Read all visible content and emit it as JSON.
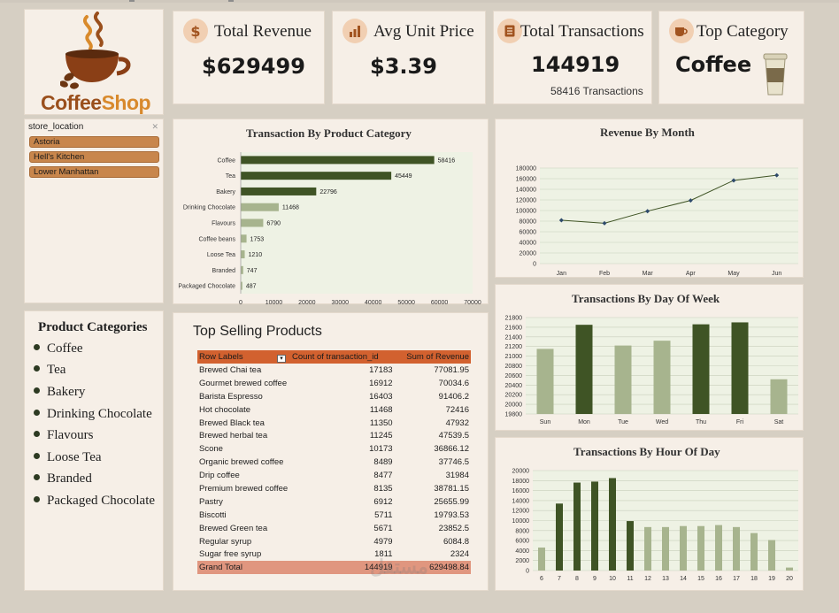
{
  "brand": {
    "part1": "Coffee",
    "part2": "Shop"
  },
  "kpis": [
    {
      "icon": "dollar-icon",
      "icon_glyph": "$",
      "label": "Total Revenue",
      "value": "$629499",
      "sub": ""
    },
    {
      "icon": "bar-chart-icon",
      "icon_glyph": "▮",
      "label": "Avg Unit Price",
      "value": "$3.39",
      "sub": ""
    },
    {
      "icon": "receipt-icon",
      "icon_glyph": "▤",
      "label": "Total Transactions",
      "value": "144919",
      "sub": "58416  Transactions"
    },
    {
      "icon": "coffee-mug-icon",
      "icon_glyph": "☕",
      "label": "Top Category",
      "value": "Coffee",
      "sub": ""
    }
  ],
  "slicer": {
    "title": "store_location",
    "items": [
      "Astoria",
      "Hell's Kitchen",
      "Lower Manhattan"
    ]
  },
  "categories_panel": {
    "title": "Product Categories",
    "items": [
      "Coffee",
      "Tea",
      "Bakery",
      "Drinking Chocolate",
      "Flavours",
      "Loose Tea",
      "Branded",
      "Packaged Chocolate"
    ]
  },
  "top_products": {
    "title": "Top Selling Products",
    "headers": [
      "Row Labels",
      "Count of transaction_id",
      "Sum of  Revenue"
    ],
    "rows": [
      [
        "Brewed Chai tea",
        "17183",
        "77081.95"
      ],
      [
        "Gourmet brewed coffee",
        "16912",
        "70034.6"
      ],
      [
        "Barista Espresso",
        "16403",
        "91406.2"
      ],
      [
        "Hot chocolate",
        "11468",
        "72416"
      ],
      [
        "Brewed Black tea",
        "11350",
        "47932"
      ],
      [
        "Brewed herbal tea",
        "11245",
        "47539.5"
      ],
      [
        "Scone",
        "10173",
        "36866.12"
      ],
      [
        "Organic brewed coffee",
        "8489",
        "37746.5"
      ],
      [
        "Drip coffee",
        "8477",
        "31984"
      ],
      [
        "Premium brewed coffee",
        "8135",
        "38781.15"
      ],
      [
        "Pastry",
        "6912",
        "25655.99"
      ],
      [
        "Biscotti",
        "5711",
        "19793.53"
      ],
      [
        "Brewed Green tea",
        "5671",
        "23852.5"
      ],
      [
        "Regular syrup",
        "4979",
        "6084.8"
      ],
      [
        "Sugar free syrup",
        "1811",
        "2324"
      ]
    ],
    "total": [
      "Grand Total",
      "144919",
      "629498.84"
    ]
  },
  "colors": {
    "dark_green": "#3f5425",
    "light_green": "#a7b48e",
    "panel_bg": "#f6efe7",
    "plot_bg": "#eef2e4",
    "header_orange": "#d2612f",
    "total_salmon": "#e0967f"
  },
  "chart_data": [
    {
      "type": "bar",
      "orientation": "horizontal",
      "title": "Transaction By Product Category",
      "categories": [
        "Coffee",
        "Tea",
        "Bakery",
        "Drinking Chocolate",
        "Flavours",
        "Coffee beans",
        "Loose Tea",
        "Branded",
        "Packaged Chocolate"
      ],
      "values": [
        58416,
        45449,
        22796,
        11468,
        6790,
        1753,
        1210,
        747,
        487
      ],
      "xlim": [
        0,
        70000
      ],
      "xticks": [
        "0",
        "10000",
        "20000",
        "30000",
        "40000",
        "50000",
        "60000",
        "70000"
      ],
      "highlight_top": 3,
      "grid": false
    },
    {
      "type": "line",
      "title": "Revenue By Month",
      "x": [
        "Jan",
        "Feb",
        "Mar",
        "Apr",
        "May",
        "Jun"
      ],
      "values": [
        81678,
        76145,
        98835,
        118941,
        156728,
        166486
      ],
      "ylim": [
        0,
        180000
      ],
      "yticks": [
        "0",
        "20000",
        "40000",
        "60000",
        "80000",
        "100000",
        "120000",
        "140000",
        "160000",
        "180000"
      ],
      "grid": true
    },
    {
      "type": "bar",
      "title": "Transactions By Day Of Week",
      "categories": [
        "Sun",
        "Mon",
        "Tue",
        "Wed",
        "Thu",
        "Fri",
        "Sat"
      ],
      "values": [
        21150,
        21650,
        21220,
        21320,
        21660,
        21700,
        20520
      ],
      "dark": [
        false,
        true,
        false,
        false,
        true,
        true,
        false
      ],
      "ylim": [
        19800,
        21800
      ],
      "yticks": [
        "19800",
        "20000",
        "20200",
        "20400",
        "20600",
        "20800",
        "21000",
        "21200",
        "21400",
        "21600",
        "21800"
      ],
      "grid": true
    },
    {
      "type": "bar",
      "title": "Transactions By Hour Of Day",
      "categories": [
        "6",
        "7",
        "8",
        "9",
        "10",
        "11",
        "12",
        "13",
        "14",
        "15",
        "16",
        "17",
        "18",
        "19",
        "20"
      ],
      "values": [
        4600,
        13400,
        17600,
        17800,
        18500,
        9900,
        8700,
        8700,
        8900,
        8900,
        9100,
        8700,
        7500,
        6100,
        600
      ],
      "dark": [
        false,
        true,
        true,
        true,
        true,
        true,
        false,
        false,
        false,
        false,
        false,
        false,
        false,
        false,
        false
      ],
      "ylim": [
        0,
        20000
      ],
      "yticks": [
        "0",
        "2000",
        "4000",
        "6000",
        "8000",
        "10000",
        "12000",
        "14000",
        "16000",
        "18000",
        "20000"
      ],
      "grid": true
    }
  ]
}
